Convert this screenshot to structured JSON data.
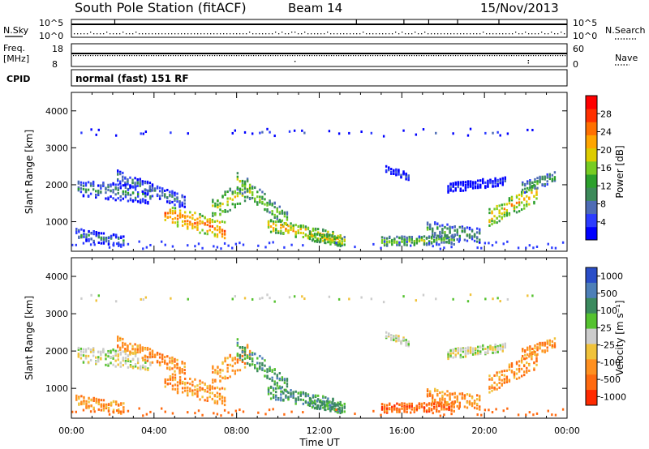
{
  "header": {
    "station": "South Pole Station (fitACF)",
    "beam": "Beam 14",
    "date": "15/Nov/2013"
  },
  "top_panels": {
    "nsky_label": "N.Sky",
    "nsky_ticks": [
      "10^5",
      "10^0"
    ],
    "nsearch_label": "N.Search",
    "nsearch_ticks": [
      "10^5",
      "10^0"
    ],
    "freq_label_line1": "Freq.",
    "freq_label_line2": "[MHz]",
    "freq_ticks": [
      "18",
      "8"
    ],
    "nave_label": "Nave",
    "nave_ticks": [
      "60",
      "0"
    ],
    "cpid_label": "CPID",
    "cpid_text": "normal (fast) 151 RF"
  },
  "chart_data": [
    {
      "type": "heatmap",
      "name": "power",
      "ylabel": "Slant Range [km]",
      "yticks": [
        1000,
        2000,
        3000,
        4000
      ],
      "ylim": [
        200,
        4500
      ],
      "xticks": [
        "00:00",
        "04:00",
        "08:00",
        "12:00",
        "16:00",
        "20:00",
        "00:00"
      ],
      "xlim_hours": [
        0,
        24
      ],
      "colorbar": {
        "label": "Power [dB]",
        "ticks": [
          "4",
          "8",
          "12",
          "16",
          "20",
          "24",
          "28"
        ],
        "colors": [
          "#0000ff",
          "#2c3cff",
          "#4e6cb5",
          "#3d8a5a",
          "#2ca02c",
          "#77cc22",
          "#ddcc00",
          "#ffa500",
          "#ff7000",
          "#ff3000",
          "#ff0000"
        ]
      }
    },
    {
      "type": "heatmap",
      "name": "velocity",
      "ylabel": "Slant Range [km]",
      "yticks": [
        1000,
        2000,
        3000,
        4000
      ],
      "ylim": [
        200,
        4500
      ],
      "xticks": [
        "00:00",
        "04:00",
        "08:00",
        "12:00",
        "16:00",
        "20:00",
        "00:00"
      ],
      "xlim_hours": [
        0,
        24
      ],
      "xlabel": "Time UT",
      "colorbar": {
        "label": "Velocity [m s⁻¹]",
        "ticks": [
          "1000",
          "500",
          "100",
          "25",
          "-25",
          "-100",
          "-500",
          "-1000"
        ],
        "colors": [
          "#2a4ec8",
          "#4d7fb8",
          "#3b8a5e",
          "#55c22f",
          "#cccccc",
          "#f0c23a",
          "#ff9020",
          "#ff6a10",
          "#ff2a00"
        ]
      }
    }
  ]
}
